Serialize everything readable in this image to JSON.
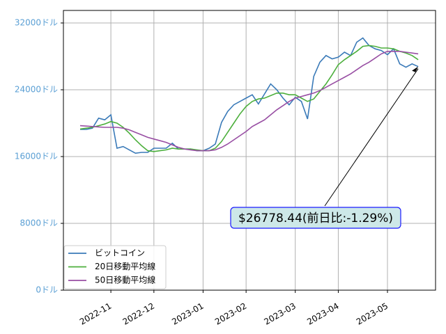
{
  "chart_data": {
    "type": "line",
    "categories": [
      null,
      null,
      null,
      null,
      null,
      "2022-11",
      null,
      null,
      null,
      null,
      null,
      null,
      "2022-12",
      null,
      null,
      null,
      null,
      null,
      null,
      null,
      "2023-01",
      null,
      null,
      null,
      null,
      null,
      null,
      "2023-02",
      null,
      null,
      null,
      null,
      null,
      null,
      null,
      "2023-03",
      null,
      null,
      null,
      null,
      null,
      null,
      "2023-04",
      null,
      null,
      null,
      null,
      null,
      null,
      null,
      "2023-05",
      null,
      null,
      null,
      null,
      null
    ],
    "series": [
      {
        "name": "ビットコイン",
        "color": "#3a7ab8",
        "values": [
          19250,
          19250,
          19400,
          20600,
          20400,
          21000,
          17000,
          17200,
          16800,
          16400,
          16500,
          16500,
          17000,
          17000,
          17000,
          17600,
          16900,
          16900,
          16900,
          16700,
          16700,
          17000,
          17500,
          20100,
          21400,
          22200,
          22600,
          23000,
          23400,
          22300,
          23500,
          24700,
          24000,
          23000,
          22200,
          23100,
          22600,
          20500,
          25600,
          27300,
          28100,
          27700,
          27900,
          28500,
          28100,
          29700,
          30200,
          29300,
          28900,
          28700,
          28200,
          28900,
          27100,
          26700,
          27100,
          26778
        ]
      },
      {
        "name": "20日移動平均線",
        "color": "#4caf3c",
        "values": [
          19300,
          19400,
          19500,
          19700,
          19900,
          20200,
          20000,
          19500,
          18800,
          18000,
          17300,
          16700,
          16600,
          16700,
          16800,
          17000,
          16900,
          16900,
          16900,
          16800,
          16700,
          16700,
          17000,
          17800,
          18900,
          20000,
          21100,
          22000,
          22600,
          22900,
          23000,
          23300,
          23600,
          23600,
          23400,
          23400,
          23000,
          22600,
          22900,
          23800,
          24700,
          25800,
          27000,
          27600,
          28100,
          28600,
          29200,
          29300,
          29200,
          29000,
          29000,
          28900,
          28600,
          28400,
          28100,
          27600
        ]
      },
      {
        "name": "50日移動平均線",
        "color": "#984ea3",
        "values": [
          19700,
          19650,
          19600,
          19550,
          19500,
          19500,
          19500,
          19400,
          19200,
          18900,
          18600,
          18300,
          18100,
          17900,
          17700,
          17400,
          17100,
          16900,
          16800,
          16700,
          16700,
          16700,
          16800,
          17100,
          17500,
          18000,
          18500,
          19000,
          19600,
          20000,
          20400,
          21000,
          21600,
          22100,
          22600,
          23000,
          23200,
          23400,
          23600,
          23900,
          24300,
          24700,
          25100,
          25500,
          25900,
          26400,
          26900,
          27300,
          27800,
          28300,
          28600,
          28600,
          28600,
          28500,
          28400,
          28300
        ]
      }
    ],
    "ylim": [
      0,
      33500
    ],
    "yticks": [
      {
        "value": 0,
        "label": "0ドル"
      },
      {
        "value": 8000,
        "label": "8000ドル"
      },
      {
        "value": 16000,
        "label": "16000ドル"
      },
      {
        "value": 24000,
        "label": "24000ドル"
      },
      {
        "value": 32000,
        "label": "32000ドル"
      }
    ],
    "grid": true,
    "legend": "lower left",
    "annotation": "$26778.44(前日比:-1.29%)"
  }
}
